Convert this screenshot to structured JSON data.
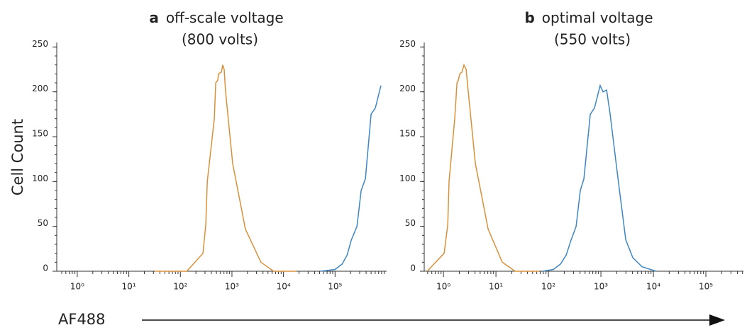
{
  "ylabel": "Cell Count",
  "xlabel": "AF488",
  "chart_data": [
    {
      "type": "line",
      "panel": "a",
      "title": "off-scale voltage",
      "subtitle": "(800 volts)",
      "xscale": "log",
      "xlim": [
        0.4,
        1000000
      ],
      "ylim": [
        0,
        255
      ],
      "xticks": [
        {
          "value": 1,
          "label": "10⁰"
        },
        {
          "value": 10,
          "label": "10¹"
        },
        {
          "value": 100,
          "label": "10²"
        },
        {
          "value": 1000,
          "label": "10³"
        },
        {
          "value": 10000,
          "label": "10⁴"
        },
        {
          "value": 100000,
          "label": "10⁵"
        }
      ],
      "yticks": [
        0,
        50,
        100,
        150,
        200,
        250
      ],
      "series": [
        {
          "color": "#d8913b",
          "x": [
            32,
            133,
            274,
            311,
            332,
            455,
            484,
            532,
            549,
            624,
            664,
            707,
            753,
            1032,
            1820,
            3650,
            6430,
            17650
          ],
          "values": [
            0,
            0,
            20,
            52,
            100,
            170,
            210,
            213,
            220,
            222,
            230,
            225,
            200,
            120,
            47,
            10,
            0,
            0
          ]
        },
        {
          "color": "#3d86c1",
          "x": [
            53200,
            100000,
            137000,
            171000,
            207000,
            266000,
            321000,
            388000,
            500000,
            604000,
            777000
          ],
          "values": [
            0,
            2,
            8,
            18,
            35,
            50,
            90,
            103,
            175,
            182,
            207
          ]
        }
      ]
    },
    {
      "type": "line",
      "panel": "b",
      "title": "optimal voltage",
      "subtitle": "(550 volts)",
      "xscale": "log",
      "xlim": [
        0.43,
        520000
      ],
      "ylim": [
        0,
        255
      ],
      "xticks": [
        {
          "value": 1,
          "label": "10⁰"
        },
        {
          "value": 10,
          "label": "10¹"
        },
        {
          "value": 100,
          "label": "10²"
        },
        {
          "value": 1000,
          "label": "10³"
        },
        {
          "value": 10000,
          "label": "10⁴"
        },
        {
          "value": 100000,
          "label": "10⁵"
        }
      ],
      "yticks": [
        0,
        50,
        100,
        150,
        200,
        250
      ],
      "series": [
        {
          "color": "#d8913b",
          "x": [
            0.49,
            1.03,
            1.21,
            1.28,
            1.64,
            1.81,
            1.92,
            2.05,
            2.25,
            2.46,
            2.71,
            2.97,
            4.06,
            7.1,
            13.2,
            23.2,
            66.7
          ],
          "values": [
            0,
            20,
            52,
            100,
            170,
            210,
            213,
            220,
            222,
            230,
            225,
            200,
            120,
            47,
            10,
            0,
            0
          ]
        },
        {
          "color": "#3d86c1",
          "x": [
            78,
            124,
            170,
            218,
            271,
            337,
            405,
            474,
            627,
            755,
            968,
            1099,
            1283,
            1500,
            2046,
            2972,
            4056,
            6080,
            11320
          ],
          "values": [
            0,
            2,
            8,
            18,
            35,
            50,
            90,
            103,
            175,
            182,
            207,
            200,
            202,
            175,
            110,
            35,
            15,
            5,
            0
          ]
        }
      ]
    }
  ]
}
